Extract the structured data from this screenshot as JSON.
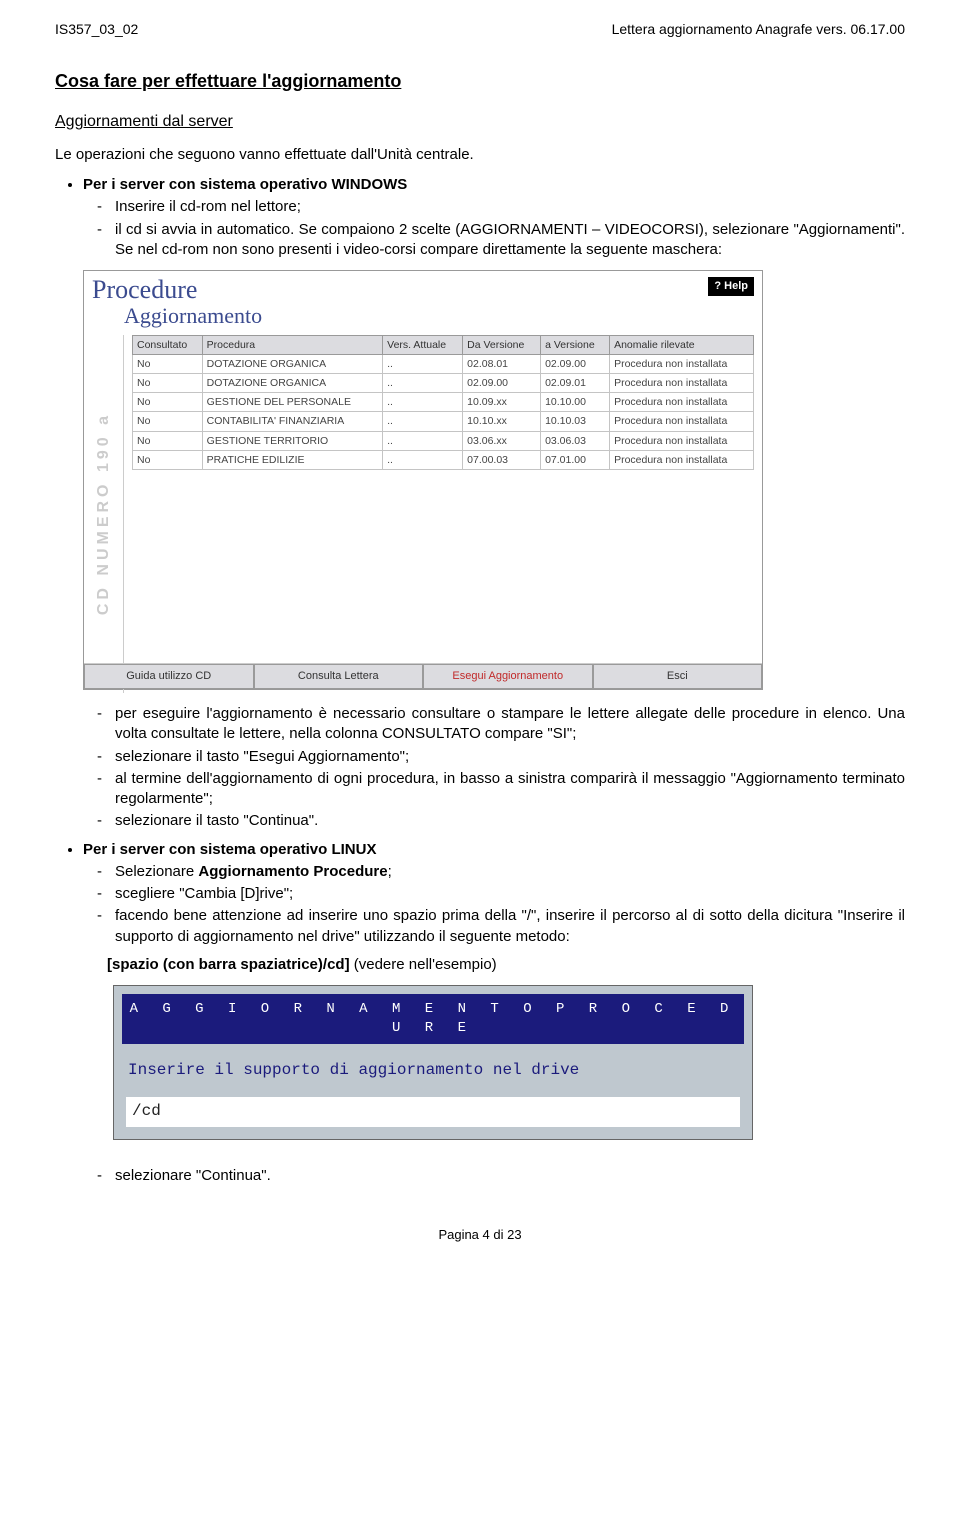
{
  "header": {
    "doc_code": "IS357_03_02",
    "doc_title_right": "Lettera aggiornamento Anagrafe vers. 06.17.00"
  },
  "title": "Cosa fare per effettuare l'aggiornamento",
  "subtitle": "Aggiornamenti dal server",
  "intro": "Le operazioni che seguono vanno effettuate dall'Unità centrale.",
  "windows": {
    "label": "Per i server con sistema operativo WINDOWS",
    "dash1": "Inserire il cd-rom nel lettore;",
    "dash2": "il cd si avvia in automatico. Se compaiono 2 scelte (AGGIORNAMENTI – VIDEOCORSI), selezionare \"Aggiornamenti\". Se nel cd-rom non sono presenti i video-corsi compare direttamente la seguente maschera:"
  },
  "proc_window": {
    "title": "Procedure",
    "subtitle": "Aggiornamento",
    "help": "? Help",
    "sidebar_text": "CD NUMERO 190 a",
    "columns": [
      "Consultato",
      "Procedura",
      "Vers. Attuale",
      "Da Versione",
      "a Versione",
      "Anomalie rilevate"
    ],
    "rows": [
      [
        "No",
        "DOTAZIONE ORGANICA",
        "..",
        "02.08.01",
        "02.09.00",
        "Procedura non installata"
      ],
      [
        "No",
        "DOTAZIONE ORGANICA",
        "..",
        "02.09.00",
        "02.09.01",
        "Procedura non installata"
      ],
      [
        "No",
        "GESTIONE DEL PERSONALE",
        "..",
        "10.09.xx",
        "10.10.00",
        "Procedura non installata"
      ],
      [
        "No",
        "CONTABILITA' FINANZIARIA",
        "..",
        "10.10.xx",
        "10.10.03",
        "Procedura non installata"
      ],
      [
        "No",
        "GESTIONE TERRITORIO",
        "..",
        "03.06.xx",
        "03.06.03",
        "Procedura non installata"
      ],
      [
        "No",
        "PRATICHE EDILIZIE",
        "..",
        "07.00.03",
        "07.01.00",
        "Procedura non installata"
      ]
    ],
    "footer": [
      "Guida utilizzo CD",
      "Consulta Lettera",
      "Esegui Aggiornamento",
      "Esci"
    ]
  },
  "after_img_dashes": {
    "d1": "per eseguire l'aggiornamento è necessario consultare o stampare le lettere allegate delle procedure in elenco. Una volta consultate le lettere, nella colonna CONSULTATO compare \"SI\";",
    "d2": "selezionare il tasto \"Esegui Aggiornamento\";",
    "d3": "al termine dell'aggiornamento di ogni procedura, in basso a sinistra comparirà il messaggio \"Aggiornamento terminato regolarmente\";",
    "d4": "selezionare il tasto \"Continua\"."
  },
  "linux": {
    "label": "Per i server con sistema operativo LINUX",
    "d1_pre": "Selezionare ",
    "d1_bold": "Aggiornamento Procedure",
    "d1_post": ";",
    "d2": "scegliere \"Cambia [D]rive\";",
    "d3": "facendo bene attenzione ad inserire uno spazio prima della \"/\", inserire il percorso al di sotto della dicitura \"Inserire il supporto di aggiornamento nel drive\" utilizzando il seguente metodo:",
    "cmd_bold": "[spazio (con barra spaziatrice)/cd]",
    "cmd_paren": " (vedere nell'esempio)"
  },
  "linux_window": {
    "titlebar": "A G G I O R N A M E N T O   P R O C E D U R E",
    "prompt": "Inserire il supporto di aggiornamento nel drive",
    "input": " /cd"
  },
  "final_dash": "selezionare \"Continua\".",
  "page_number": "Pagina 4 di 23"
}
